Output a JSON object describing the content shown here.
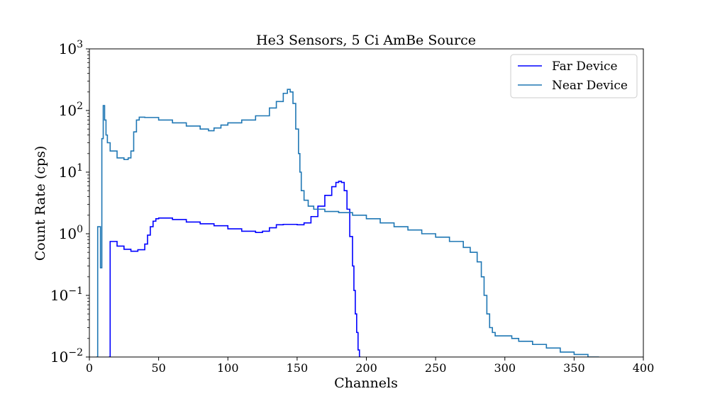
{
  "chart_data": {
    "type": "line",
    "step": true,
    "title": "He3 Sensors, 5 Ci AmBe Source",
    "xlabel": "Channels",
    "ylabel": "Count Rate (cps)",
    "xlim": [
      0,
      400
    ],
    "ylim": [
      0.01,
      1000
    ],
    "yscale": "log",
    "grid": false,
    "legend_position": "top-right",
    "x_ticks": [
      0,
      50,
      100,
      150,
      200,
      250,
      300,
      350,
      400
    ],
    "y_ticks": [
      {
        "base": "10",
        "exp": "−2",
        "value": 0.01
      },
      {
        "base": "10",
        "exp": "−1",
        "value": 0.1
      },
      {
        "base": "10",
        "exp": "0",
        "value": 1
      },
      {
        "base": "10",
        "exp": "1",
        "value": 10
      },
      {
        "base": "10",
        "exp": "2",
        "value": 100
      },
      {
        "base": "10",
        "exp": "3",
        "value": 1000
      }
    ],
    "series": [
      {
        "name": "Far Device",
        "color": "#0000ff",
        "x": [
          14,
          15,
          17,
          20,
          25,
          30,
          35,
          40,
          42,
          44,
          46,
          48,
          50,
          60,
          70,
          80,
          90,
          100,
          110,
          120,
          125,
          130,
          135,
          140,
          150,
          155,
          160,
          165,
          170,
          175,
          178,
          180,
          182,
          184,
          186,
          188,
          190,
          191,
          192,
          193,
          194,
          195
        ],
        "y": [
          0.01,
          0.75,
          0.75,
          0.63,
          0.56,
          0.52,
          0.55,
          0.68,
          0.95,
          1.3,
          1.6,
          1.75,
          1.8,
          1.7,
          1.55,
          1.45,
          1.35,
          1.2,
          1.1,
          1.05,
          1.1,
          1.25,
          1.4,
          1.42,
          1.4,
          1.5,
          1.9,
          2.8,
          4.2,
          5.8,
          6.8,
          7.1,
          6.8,
          5.0,
          2.5,
          0.9,
          0.3,
          0.12,
          0.05,
          0.025,
          0.013,
          0.01
        ]
      },
      {
        "name": "Near Device",
        "color": "#1f77b4",
        "x": [
          5,
          6,
          7,
          8,
          9,
          10,
          11,
          12,
          13,
          15,
          20,
          25,
          28,
          30,
          32,
          34,
          36,
          40,
          50,
          60,
          70,
          80,
          86,
          90,
          95,
          100,
          110,
          120,
          130,
          135,
          140,
          143,
          145,
          147,
          149,
          151,
          152,
          153,
          155,
          158,
          162,
          170,
          180,
          190,
          200,
          210,
          220,
          230,
          240,
          250,
          260,
          270,
          275,
          280,
          283,
          285,
          287,
          289,
          291,
          293,
          295,
          300,
          305,
          310,
          320,
          330,
          340,
          350,
          360,
          367
        ],
        "y": [
          0.01,
          1.3,
          1.3,
          0.28,
          35,
          120,
          70,
          40,
          30,
          22,
          17,
          16,
          17,
          22,
          45,
          70,
          78,
          77,
          70,
          63,
          56,
          50,
          47,
          52,
          58,
          63,
          70,
          82,
          110,
          140,
          190,
          220,
          200,
          130,
          50,
          20,
          10,
          5,
          3.5,
          2.8,
          2.5,
          2.3,
          2.2,
          2.0,
          1.75,
          1.5,
          1.3,
          1.15,
          1.0,
          0.88,
          0.75,
          0.6,
          0.5,
          0.35,
          0.2,
          0.1,
          0.05,
          0.03,
          0.025,
          0.022,
          0.022,
          0.022,
          0.02,
          0.018,
          0.016,
          0.014,
          0.012,
          0.011,
          0.01,
          0.01
        ]
      }
    ]
  }
}
